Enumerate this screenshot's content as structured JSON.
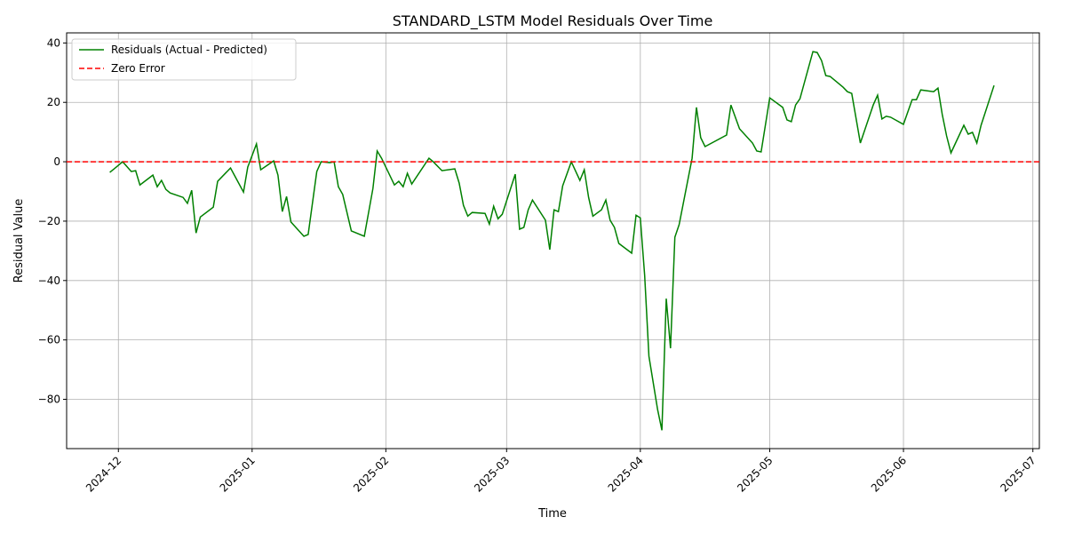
{
  "chart_data": {
    "type": "line",
    "title": "STANDARD_LSTM Model Residuals Over Time",
    "xlabel": "Time",
    "ylabel": "Residual Value",
    "x": [
      -2,
      1,
      3,
      4,
      5,
      8,
      9,
      10,
      11,
      12,
      15,
      16,
      17,
      18,
      19,
      22,
      23,
      26,
      29,
      30,
      32,
      33,
      36,
      37,
      38,
      39,
      40,
      43,
      44,
      46,
      47,
      49,
      50,
      51,
      52,
      54,
      57,
      59,
      60,
      61,
      64,
      65,
      66,
      67,
      68,
      72,
      73,
      75,
      78,
      79,
      80,
      81,
      82,
      85,
      86,
      87,
      88,
      89,
      92,
      93,
      94,
      95,
      96,
      99,
      100,
      101,
      102,
      103,
      105,
      107,
      108,
      109,
      110,
      112,
      113,
      114,
      115,
      116,
      119,
      120,
      121,
      122,
      123,
      125,
      126,
      127,
      128,
      129,
      130,
      133,
      134,
      135,
      136,
      141,
      142,
      144,
      147,
      148,
      149,
      151,
      154,
      155,
      156,
      157,
      158,
      161,
      162,
      163,
      164,
      165,
      168,
      169,
      170,
      172,
      175,
      176,
      177,
      178,
      179,
      182,
      184,
      185,
      186,
      189,
      190,
      191,
      192,
      193,
      196,
      197,
      198,
      199,
      200,
      203
    ],
    "series": [
      {
        "name": "Residuals (Actual - Predicted)",
        "color": "#008000",
        "style": "solid",
        "values": [
          -3.6,
          0,
          -3.3,
          -3,
          -7.8,
          -4.5,
          -8.4,
          -6.3,
          -9.3,
          -10.5,
          -12,
          -14,
          -9.6,
          -24,
          -18.6,
          -15.3,
          -6.6,
          -2.1,
          -10.2,
          -1.8,
          6,
          -2.7,
          0.3,
          -4.5,
          -16.8,
          -11.7,
          -20.3,
          -25.1,
          -24.5,
          -3.3,
          0,
          -0.3,
          0,
          -8.4,
          -11,
          -23.3,
          -25.1,
          -9,
          3.6,
          1.2,
          -7.8,
          -6.6,
          -8.4,
          -3.9,
          -7.5,
          1.2,
          0,
          -3,
          -2.4,
          -7.2,
          -14.7,
          -18.3,
          -17.1,
          -17.4,
          -21,
          -15,
          -19.2,
          -17.7,
          -4.2,
          -22.7,
          -22.1,
          -16.2,
          -12.9,
          -19.7,
          -29.6,
          -16.2,
          -16.8,
          -8.1,
          0,
          -6.3,
          -2.7,
          -12,
          -18.3,
          -16.2,
          -12.9,
          -19.7,
          -22.1,
          -27.5,
          -30.8,
          -18,
          -18.9,
          -38.3,
          -65.5,
          -83.5,
          -90.4,
          -46.1,
          -62.8,
          -25.4,
          -21.2,
          1.2,
          18.3,
          8.1,
          5.1,
          9,
          19.1,
          11.1,
          6.3,
          3.6,
          3.3,
          21.5,
          18.3,
          14.1,
          13.5,
          19.1,
          21.2,
          37.1,
          36.8,
          34.1,
          29,
          28.7,
          25.1,
          23.6,
          23,
          6.3,
          19.1,
          22.4,
          14.4,
          15.3,
          15,
          12.6,
          20.9,
          20.9,
          24.2,
          23.6,
          24.8,
          15.9,
          8.7,
          3,
          12.3,
          9.3,
          9.9,
          6.3,
          12.3,
          25.7
        ]
      },
      {
        "name": "Zero Error",
        "color": "#ff0000",
        "style": "dashed",
        "hline": 0
      }
    ],
    "xlim": [
      -12,
      213.5
    ],
    "xticks": [
      {
        "value": 0,
        "label": "2024-12"
      },
      {
        "value": 31,
        "label": "2025-01"
      },
      {
        "value": 62,
        "label": "2025-02"
      },
      {
        "value": 90,
        "label": "2025-03"
      },
      {
        "value": 121,
        "label": "2025-04"
      },
      {
        "value": 151,
        "label": "2025-05"
      },
      {
        "value": 182,
        "label": "2025-06"
      },
      {
        "value": 212,
        "label": "2025-07"
      }
    ],
    "ylim": [
      -96.6,
      43.4
    ],
    "yticks": [
      {
        "value": -80,
        "label": "−80"
      },
      {
        "value": -60,
        "label": "−60"
      },
      {
        "value": -40,
        "label": "−40"
      },
      {
        "value": -20,
        "label": "−20"
      },
      0,
      20,
      40
    ],
    "grid": true,
    "legend": "upper left"
  }
}
